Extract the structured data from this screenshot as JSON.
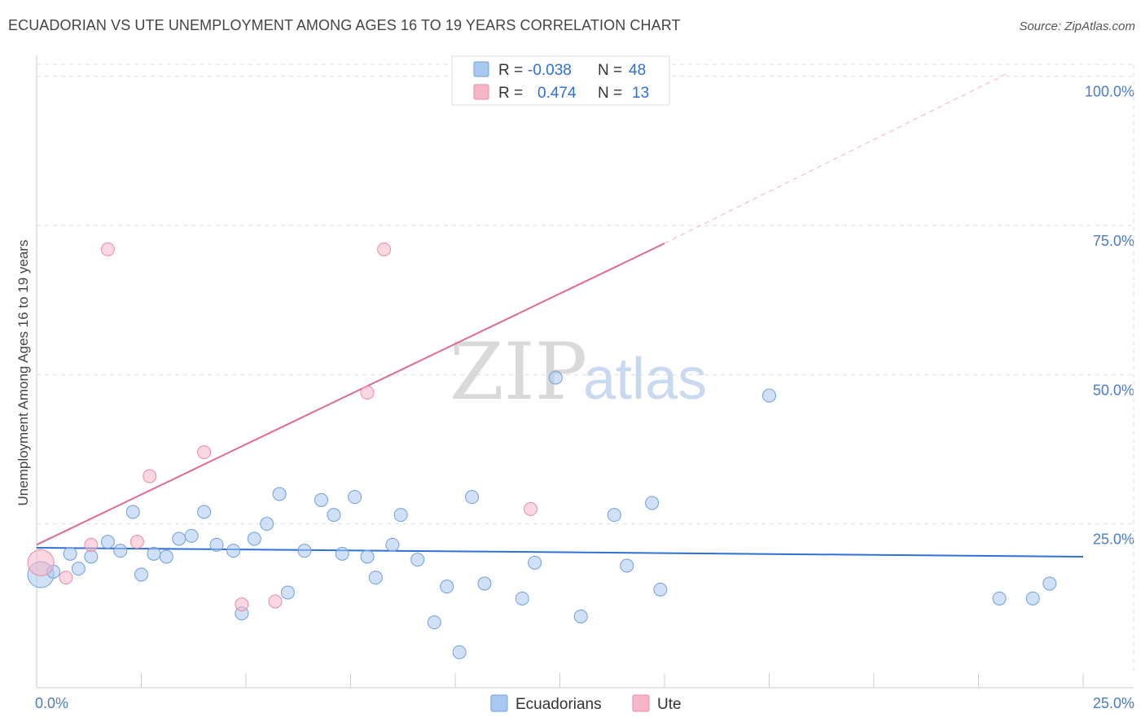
{
  "header": {
    "title": "ECUADORIAN VS UTE UNEMPLOYMENT AMONG AGES 16 TO 19 YEARS CORRELATION CHART",
    "source": "Source: ZipAtlas.com"
  },
  "watermark": {
    "zip": "ZIP",
    "atlas": "atlas"
  },
  "legend": {
    "rows": [
      {
        "r_label": "R = ",
        "r_value": "-0.038",
        "n_label": "N = ",
        "n_value": "48",
        "color": "#a9c8f0"
      },
      {
        "r_label": "R = ",
        "r_value": "0.474",
        "n_label": "N = ",
        "n_value": "13",
        "color": "#f7b6c8"
      }
    ]
  },
  "bottom_legend": {
    "series1": "Ecuadorians",
    "series2": "Ute"
  },
  "colors": {
    "blue_fill": "#a9c8f0",
    "blue_stroke": "#6f9fd8",
    "blue_line": "#2f6fd6",
    "pink_fill": "#f7b6c8",
    "pink_stroke": "#e98aa6",
    "pink_line": "#e06a8e",
    "grid": "#dddddd",
    "axis_text": "#4a7cc4"
  },
  "chart_data": {
    "type": "scatter",
    "title": "ECUADORIAN VS UTE UNEMPLOYMENT AMONG AGES 16 TO 19 YEARS CORRELATION CHART",
    "xlabel": "",
    "ylabel": "Unemployment Among Ages 16 to 19 years",
    "xlim": [
      0,
      25
    ],
    "ylim": [
      0,
      102
    ],
    "x_tick_labels": [
      "0.0%",
      "25.0%"
    ],
    "y_tick_labels": [
      "100.0%",
      "75.0%",
      "50.0%",
      "25.0%"
    ],
    "y_ticks": [
      100,
      75,
      50,
      25
    ],
    "grid": true,
    "legend_position": "top-center",
    "series": [
      {
        "name": "Ecuadorians",
        "r": -0.038,
        "n": 48,
        "trend": {
          "x0": 0,
          "y0": 21.0,
          "x1": 25,
          "y1": 19.5
        },
        "points": [
          {
            "x": 0.1,
            "y": 16.5,
            "big": true
          },
          {
            "x": 0.4,
            "y": 17.0
          },
          {
            "x": 0.8,
            "y": 20.0
          },
          {
            "x": 1.0,
            "y": 17.5
          },
          {
            "x": 1.3,
            "y": 19.5
          },
          {
            "x": 1.7,
            "y": 22.0
          },
          {
            "x": 2.0,
            "y": 20.5
          },
          {
            "x": 2.3,
            "y": 27.0
          },
          {
            "x": 2.5,
            "y": 16.5
          },
          {
            "x": 2.8,
            "y": 20.0
          },
          {
            "x": 3.1,
            "y": 19.5
          },
          {
            "x": 3.4,
            "y": 22.5
          },
          {
            "x": 3.7,
            "y": 23.0
          },
          {
            "x": 4.0,
            "y": 27.0
          },
          {
            "x": 4.3,
            "y": 21.5
          },
          {
            "x": 4.7,
            "y": 20.5
          },
          {
            "x": 4.9,
            "y": 10.0
          },
          {
            "x": 5.2,
            "y": 22.5
          },
          {
            "x": 5.5,
            "y": 25.0
          },
          {
            "x": 5.8,
            "y": 30.0
          },
          {
            "x": 6.0,
            "y": 13.5
          },
          {
            "x": 6.4,
            "y": 20.5
          },
          {
            "x": 6.8,
            "y": 29.0
          },
          {
            "x": 7.1,
            "y": 26.5
          },
          {
            "x": 7.3,
            "y": 20.0
          },
          {
            "x": 7.6,
            "y": 29.5
          },
          {
            "x": 7.9,
            "y": 19.5
          },
          {
            "x": 8.1,
            "y": 16.0
          },
          {
            "x": 8.5,
            "y": 21.5
          },
          {
            "x": 8.7,
            "y": 26.5
          },
          {
            "x": 9.1,
            "y": 19.0
          },
          {
            "x": 9.5,
            "y": 8.5
          },
          {
            "x": 9.8,
            "y": 14.5
          },
          {
            "x": 10.1,
            "y": 3.5
          },
          {
            "x": 10.4,
            "y": 29.5
          },
          {
            "x": 10.7,
            "y": 15.0
          },
          {
            "x": 11.6,
            "y": 12.5
          },
          {
            "x": 11.9,
            "y": 18.5
          },
          {
            "x": 12.4,
            "y": 49.5
          },
          {
            "x": 13.0,
            "y": 9.5
          },
          {
            "x": 13.8,
            "y": 26.5
          },
          {
            "x": 14.1,
            "y": 18.0
          },
          {
            "x": 14.7,
            "y": 28.5
          },
          {
            "x": 14.9,
            "y": 14.0
          },
          {
            "x": 17.5,
            "y": 46.5
          },
          {
            "x": 23.0,
            "y": 12.5
          },
          {
            "x": 23.8,
            "y": 12.5
          },
          {
            "x": 24.2,
            "y": 15.0
          }
        ]
      },
      {
        "name": "Ute",
        "r": 0.474,
        "n": 13,
        "trend": {
          "x0": 0,
          "y0": 21.5,
          "x1": 15.0,
          "y1": 72.0,
          "dash_to_x": 23.2,
          "dash_to_y": 100.5
        },
        "points": [
          {
            "x": 0.1,
            "y": 18.5,
            "big": true
          },
          {
            "x": 0.7,
            "y": 16.0
          },
          {
            "x": 1.3,
            "y": 21.5
          },
          {
            "x": 1.7,
            "y": 71.0
          },
          {
            "x": 2.4,
            "y": 22.0
          },
          {
            "x": 2.7,
            "y": 33.0
          },
          {
            "x": 4.0,
            "y": 37.0
          },
          {
            "x": 4.9,
            "y": 11.5
          },
          {
            "x": 5.7,
            "y": 12.0
          },
          {
            "x": 7.9,
            "y": 47.0
          },
          {
            "x": 8.3,
            "y": 71.0
          },
          {
            "x": 11.8,
            "y": 27.5
          }
        ]
      }
    ]
  }
}
